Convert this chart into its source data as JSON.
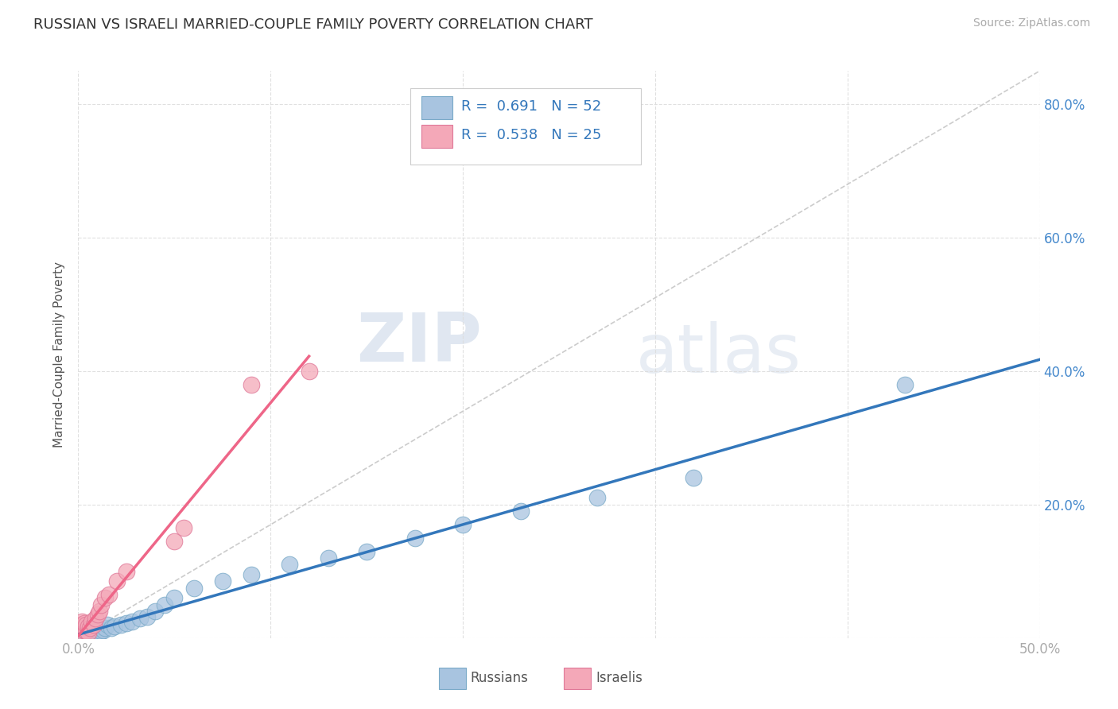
{
  "title": "RUSSIAN VS ISRAELI MARRIED-COUPLE FAMILY POVERTY CORRELATION CHART",
  "source": "Source: ZipAtlas.com",
  "ylabel_val": "Married-Couple Family Poverty",
  "xlim": [
    0.0,
    0.5
  ],
  "ylim": [
    0.0,
    0.85
  ],
  "xticks": [
    0.0,
    0.1,
    0.2,
    0.3,
    0.4,
    0.5
  ],
  "xtick_labels": [
    "0.0%",
    "",
    "",
    "",
    "",
    "50.0%"
  ],
  "yticks": [
    0.0,
    0.2,
    0.4,
    0.6,
    0.8
  ],
  "ytick_labels_right": [
    "",
    "20.0%",
    "40.0%",
    "60.0%",
    "80.0%"
  ],
  "russian_color": "#a8c4e0",
  "russian_edge": "#7aaac8",
  "israeli_color": "#f4a8b8",
  "israeli_edge": "#e07898",
  "russian_R": "0.691",
  "russian_N": "52",
  "israeli_R": "0.538",
  "israeli_N": "25",
  "russian_line_color": "#3377bb",
  "israeli_line_color": "#ee6688",
  "diag_color": "#cccccc",
  "russian_x": [
    0.001,
    0.001,
    0.002,
    0.002,
    0.003,
    0.003,
    0.003,
    0.004,
    0.004,
    0.004,
    0.005,
    0.005,
    0.005,
    0.006,
    0.006,
    0.006,
    0.007,
    0.007,
    0.007,
    0.008,
    0.008,
    0.009,
    0.009,
    0.01,
    0.01,
    0.011,
    0.012,
    0.013,
    0.014,
    0.015,
    0.017,
    0.019,
    0.022,
    0.025,
    0.028,
    0.032,
    0.036,
    0.04,
    0.045,
    0.05,
    0.06,
    0.075,
    0.09,
    0.11,
    0.13,
    0.15,
    0.175,
    0.2,
    0.23,
    0.27,
    0.32,
    0.43
  ],
  "russian_y": [
    0.01,
    0.015,
    0.008,
    0.012,
    0.006,
    0.01,
    0.015,
    0.005,
    0.008,
    0.012,
    0.004,
    0.007,
    0.01,
    0.004,
    0.007,
    0.012,
    0.004,
    0.008,
    0.013,
    0.006,
    0.01,
    0.005,
    0.009,
    0.006,
    0.01,
    0.008,
    0.01,
    0.012,
    0.015,
    0.02,
    0.015,
    0.018,
    0.02,
    0.022,
    0.025,
    0.03,
    0.032,
    0.04,
    0.05,
    0.06,
    0.075,
    0.085,
    0.095,
    0.11,
    0.12,
    0.13,
    0.15,
    0.17,
    0.19,
    0.21,
    0.24,
    0.38
  ],
  "israeli_x": [
    0.001,
    0.001,
    0.002,
    0.002,
    0.003,
    0.003,
    0.004,
    0.004,
    0.005,
    0.005,
    0.006,
    0.007,
    0.008,
    0.009,
    0.01,
    0.011,
    0.012,
    0.014,
    0.016,
    0.02,
    0.025,
    0.05,
    0.055,
    0.09,
    0.12
  ],
  "israeli_y": [
    0.01,
    0.02,
    0.015,
    0.025,
    0.012,
    0.022,
    0.01,
    0.02,
    0.008,
    0.018,
    0.015,
    0.025,
    0.02,
    0.03,
    0.035,
    0.04,
    0.05,
    0.06,
    0.065,
    0.085,
    0.1,
    0.145,
    0.165,
    0.38,
    0.4
  ],
  "watermark_zip": "ZIP",
  "watermark_atlas": "atlas",
  "background_color": "#ffffff",
  "grid_color": "#dddddd",
  "title_color": "#333333",
  "axis_label_color": "#555555",
  "tick_color": "#aaaaaa"
}
